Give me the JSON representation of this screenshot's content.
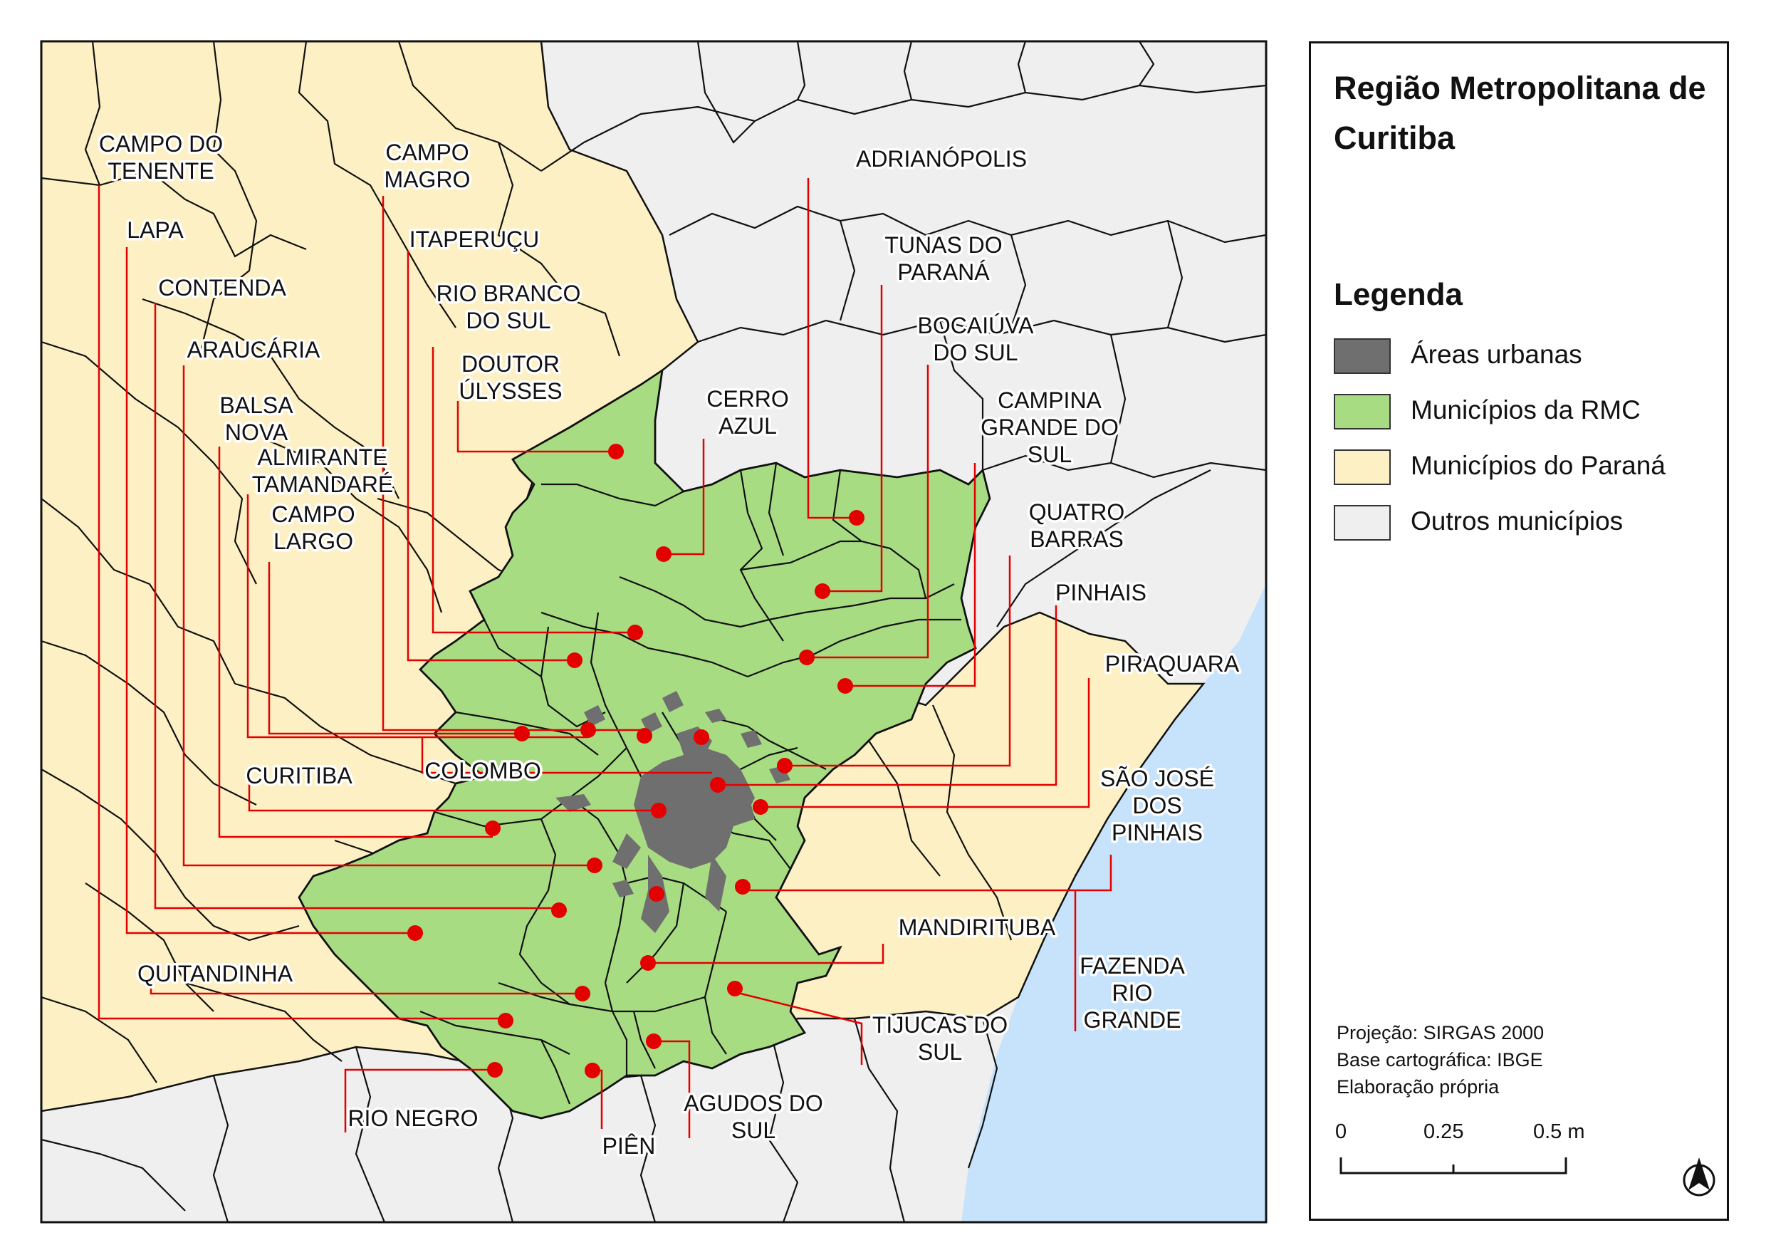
{
  "map": {
    "colors": {
      "urban": "#6f6f6f",
      "rmc": "#a8dc82",
      "parana": "#fdf0c4",
      "others": "#efefef",
      "ocean": "#c6e3fb",
      "leader": "#e30000",
      "point": "#e30000",
      "border": "#111111"
    },
    "labels": [
      {
        "id": "campo-do-tenente",
        "lines": [
          "CAMPO DO",
          "TENENTE"
        ]
      },
      {
        "id": "lapa",
        "lines": [
          "LAPA"
        ]
      },
      {
        "id": "contenda",
        "lines": [
          "CONTENDA"
        ]
      },
      {
        "id": "araucaria",
        "lines": [
          "ARAUCÁRIA"
        ]
      },
      {
        "id": "balsa-nova",
        "lines": [
          "BALSA",
          "NOVA"
        ]
      },
      {
        "id": "almirante-tamandare",
        "lines": [
          "ALMIRANTE",
          "TAMANDARÉ"
        ]
      },
      {
        "id": "campo-largo",
        "lines": [
          "CAMPO",
          "LARGO"
        ]
      },
      {
        "id": "campo-magro",
        "lines": [
          "CAMPO",
          "MAGRO"
        ]
      },
      {
        "id": "itaperucu",
        "lines": [
          "ITAPERUÇU"
        ]
      },
      {
        "id": "rio-branco-do-sul",
        "lines": [
          "RIO BRANCO",
          "DO SUL"
        ]
      },
      {
        "id": "doutor-ulysses",
        "lines": [
          "DOUTOR",
          "ÚLYSSES"
        ]
      },
      {
        "id": "cerro-azul",
        "lines": [
          "CERRO",
          "AZUL"
        ]
      },
      {
        "id": "adrianopolis",
        "lines": [
          "ADRIANÓPOLIS"
        ]
      },
      {
        "id": "tunas-do-parana",
        "lines": [
          "TUNAS DO",
          "PARANÁ"
        ]
      },
      {
        "id": "bocaiuva-do-sul",
        "lines": [
          "BOCAIÚVA",
          "DO SUL"
        ]
      },
      {
        "id": "campina-grande-do-sul",
        "lines": [
          "CAMPINA",
          "GRANDE DO",
          "SUL"
        ]
      },
      {
        "id": "quatro-barras",
        "lines": [
          "QUATRO",
          "BARRAS"
        ]
      },
      {
        "id": "pinhais",
        "lines": [
          "PINHAIS"
        ]
      },
      {
        "id": "piraquara",
        "lines": [
          "PIRAQUARA"
        ]
      },
      {
        "id": "sao-jose-dos-pinhais",
        "lines": [
          "SÃO JOSÉ",
          "DOS",
          "PINHAIS"
        ]
      },
      {
        "id": "curitiba",
        "lines": [
          "CURITIBA"
        ]
      },
      {
        "id": "colombo",
        "lines": [
          "COLOMBO"
        ]
      },
      {
        "id": "mandirituba",
        "lines": [
          "MANDIRITUBA"
        ]
      },
      {
        "id": "fazenda-rio-grande",
        "lines": [
          "FAZENDA",
          "RIO",
          "GRANDE"
        ]
      },
      {
        "id": "quitandinha",
        "lines": [
          "QUITANDINHA"
        ]
      },
      {
        "id": "tijucas-do-sul",
        "lines": [
          "TIJUCAS DO",
          "SUL"
        ]
      },
      {
        "id": "rio-negro",
        "lines": [
          "RIO NEGRO"
        ]
      },
      {
        "id": "agudos-do-sul",
        "lines": [
          "AGUDOS DO",
          "SUL"
        ]
      },
      {
        "id": "pien",
        "lines": [
          "PIÊN"
        ]
      }
    ]
  },
  "panel": {
    "title": "Região Metropolitana de Curitiba",
    "legend_title": "Legenda",
    "legend": [
      {
        "label": "Áreas urbanas",
        "color": "#6f6f6f"
      },
      {
        "label": "Municípios da RMC",
        "color": "#a8dc82"
      },
      {
        "label": "Municípios do Paraná",
        "color": "#fdf0c4"
      },
      {
        "label": "Outros municípios",
        "color": "#efefef"
      }
    ],
    "credits": [
      "Projeção: SIRGAS 2000",
      "Base cartográfica: IBGE",
      "Elaboração própria"
    ],
    "scale": {
      "ticks": [
        "0",
        "0.25",
        "0.5 m"
      ]
    },
    "north_arrow": "north-arrow-icon"
  }
}
